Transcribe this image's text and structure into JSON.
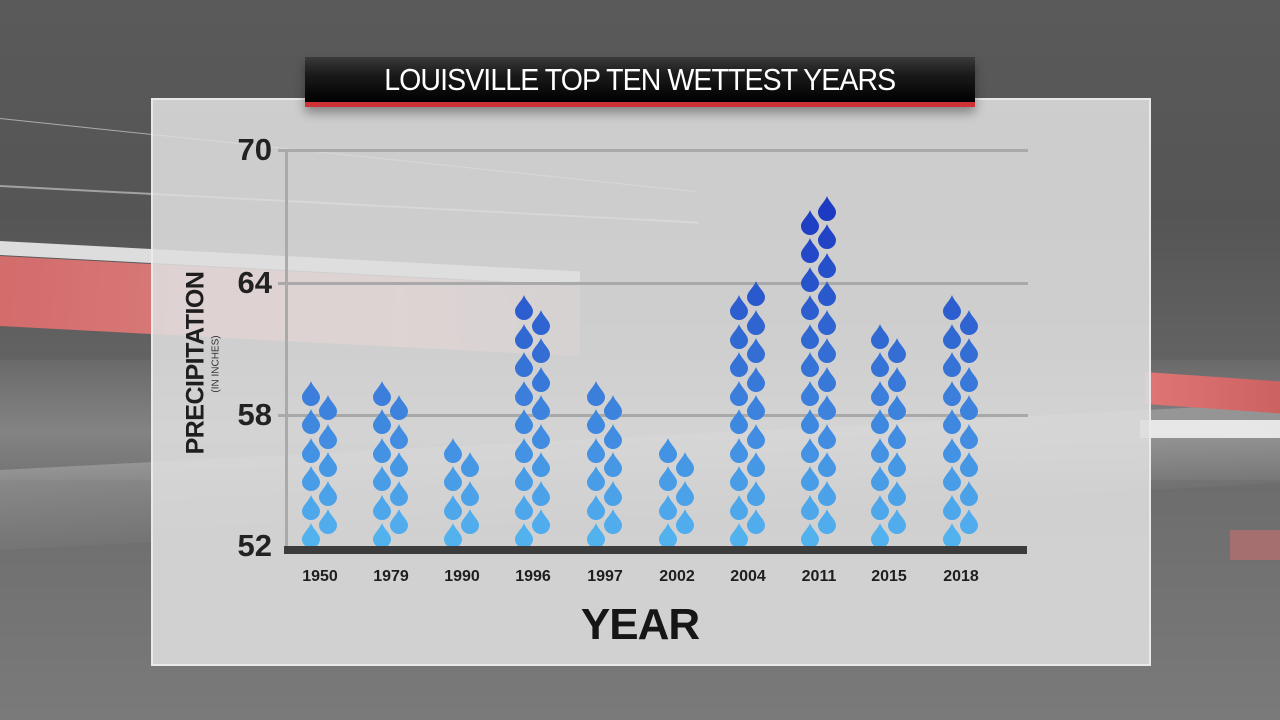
{
  "title": "LOUISVILLE TOP TEN WETTEST YEARS",
  "colors": {
    "title_bar_bg": "#000000",
    "title_accent": "#cf3236",
    "drop_low": "#54b6f0",
    "drop_high": "#1a35c0",
    "panel_bg": "#dedede"
  },
  "chart_data": {
    "type": "bar",
    "style": "pictograph (stacked raindrop icons)",
    "title": "LOUISVILLE TOP TEN WETTEST YEARS",
    "xlabel": "YEAR",
    "ylabel": "PRECIPITATION",
    "ylabel_sub": "(IN INCHES)",
    "ylim": [
      52,
      70
    ],
    "yticks": [
      52,
      58,
      64,
      70
    ],
    "grid": true,
    "legend": null,
    "categories": [
      "1950",
      "1979",
      "1990",
      "1996",
      "1997",
      "2002",
      "2004",
      "2011",
      "2015",
      "2018"
    ],
    "values": [
      59.6,
      59.9,
      57.3,
      63.8,
      59.6,
      57.3,
      64.5,
      68.0,
      62.2,
      63.8
    ]
  },
  "axis": {
    "y_ticks": [
      "70",
      "64",
      "58",
      "52"
    ],
    "y_title": "PRECIPITATION",
    "y_subtitle": "(IN INCHES)",
    "x_title": "YEAR",
    "x_labels": [
      "1950",
      "1979",
      "1990",
      "1996",
      "1997",
      "2002",
      "2004",
      "2011",
      "2015",
      "2018"
    ]
  }
}
